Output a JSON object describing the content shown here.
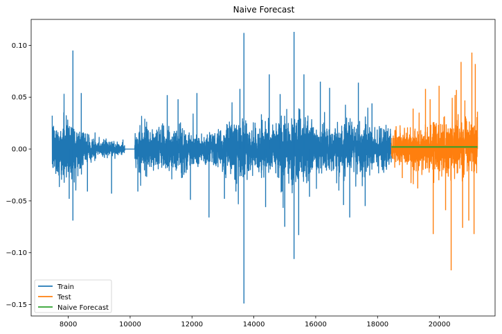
{
  "chart_data": {
    "type": "line",
    "title": "Naive Forecast",
    "xlabel": "",
    "ylabel": "",
    "xlim": [
      6800,
      21800
    ],
    "ylim": [
      -0.161,
      0.125
    ],
    "x_ticks": [
      8000,
      10000,
      12000,
      14000,
      16000,
      18000,
      20000
    ],
    "x_tick_labels": [
      "8000",
      "10000",
      "12000",
      "14000",
      "16000",
      "18000",
      "20000"
    ],
    "y_ticks": [
      0.1,
      0.05,
      0.0,
      -0.05,
      -0.1,
      -0.15
    ],
    "y_tick_labels": [
      "0.10",
      "0.05",
      "0.00",
      "−0.05",
      "−0.10",
      "−0.15"
    ],
    "grid": false,
    "legend_position": "lower-left",
    "series": [
      {
        "name": "Train",
        "color": "#1f77b4",
        "style": "volatile-noise",
        "x_range": [
          7480,
          18450
        ],
        "envelope_x": [
          7480,
          8100,
          8500,
          9000,
          9500,
          9900,
          10200,
          10600,
          11000,
          11500,
          12000,
          12500,
          13000,
          13500,
          13700,
          14000,
          14500,
          15000,
          15300,
          15600,
          16000,
          16500,
          17000,
          17500,
          18000,
          18450
        ],
        "envelope_amp": [
          0.028,
          0.032,
          0.014,
          0.008,
          0.008,
          0.004,
          0.018,
          0.024,
          0.018,
          0.026,
          0.02,
          0.014,
          0.02,
          0.03,
          0.024,
          0.022,
          0.026,
          0.032,
          0.038,
          0.03,
          0.024,
          0.02,
          0.026,
          0.024,
          0.02,
          0.026
        ],
        "flat_segments": [
          [
            9830,
            10150,
            0.0
          ]
        ],
        "spikes": [
          [
            8150,
            0.095
          ],
          [
            8150,
            -0.069
          ],
          [
            8030,
            -0.048
          ],
          [
            8420,
            0.054
          ],
          [
            8620,
            -0.041
          ],
          [
            9400,
            -0.043
          ],
          [
            10250,
            -0.041
          ],
          [
            11200,
            0.052
          ],
          [
            11550,
            0.048
          ],
          [
            11950,
            -0.049
          ],
          [
            12160,
            0.054
          ],
          [
            12550,
            -0.066
          ],
          [
            13050,
            -0.048
          ],
          [
            13420,
            -0.041
          ],
          [
            13550,
            0.058
          ],
          [
            13680,
            0.112
          ],
          [
            13680,
            -0.149
          ],
          [
            14380,
            -0.056
          ],
          [
            14500,
            0.072
          ],
          [
            14850,
            0.053
          ],
          [
            15000,
            -0.075
          ],
          [
            15300,
            0.113
          ],
          [
            15300,
            -0.106
          ],
          [
            15450,
            -0.083
          ],
          [
            15620,
            0.072
          ],
          [
            15800,
            -0.046
          ],
          [
            16150,
            0.065
          ],
          [
            16450,
            0.059
          ],
          [
            16900,
            -0.054
          ],
          [
            17100,
            -0.066
          ],
          [
            17380,
            0.064
          ],
          [
            17600,
            -0.055
          ],
          [
            17820,
            0.044
          ]
        ]
      },
      {
        "name": "Test",
        "color": "#ff7f0e",
        "style": "volatile-noise",
        "x_range": [
          18450,
          21230
        ],
        "envelope_x": [
          18450,
          19000,
          19500,
          20000,
          20500,
          21000,
          21230
        ],
        "envelope_amp": [
          0.016,
          0.018,
          0.022,
          0.026,
          0.03,
          0.028,
          0.028
        ],
        "flat_segments": [],
        "spikes": [
          [
            18600,
            0.022
          ],
          [
            18800,
            -0.028
          ],
          [
            19150,
            0.039
          ],
          [
            19300,
            -0.038
          ],
          [
            19550,
            0.058
          ],
          [
            19700,
            0.048
          ],
          [
            19800,
            -0.082
          ],
          [
            19990,
            0.061
          ],
          [
            20200,
            -0.059
          ],
          [
            20380,
            -0.117
          ],
          [
            20550,
            0.057
          ],
          [
            20700,
            0.084
          ],
          [
            20750,
            -0.076
          ],
          [
            20950,
            -0.069
          ],
          [
            21050,
            0.093
          ],
          [
            21120,
            -0.082
          ],
          [
            21160,
            0.082
          ],
          [
            21230,
            0.036
          ]
        ]
      },
      {
        "name": "Naive Forecast",
        "color": "#2ca02c",
        "style": "constant",
        "x_range": [
          18450,
          21230
        ],
        "value": 0.002
      }
    ]
  }
}
